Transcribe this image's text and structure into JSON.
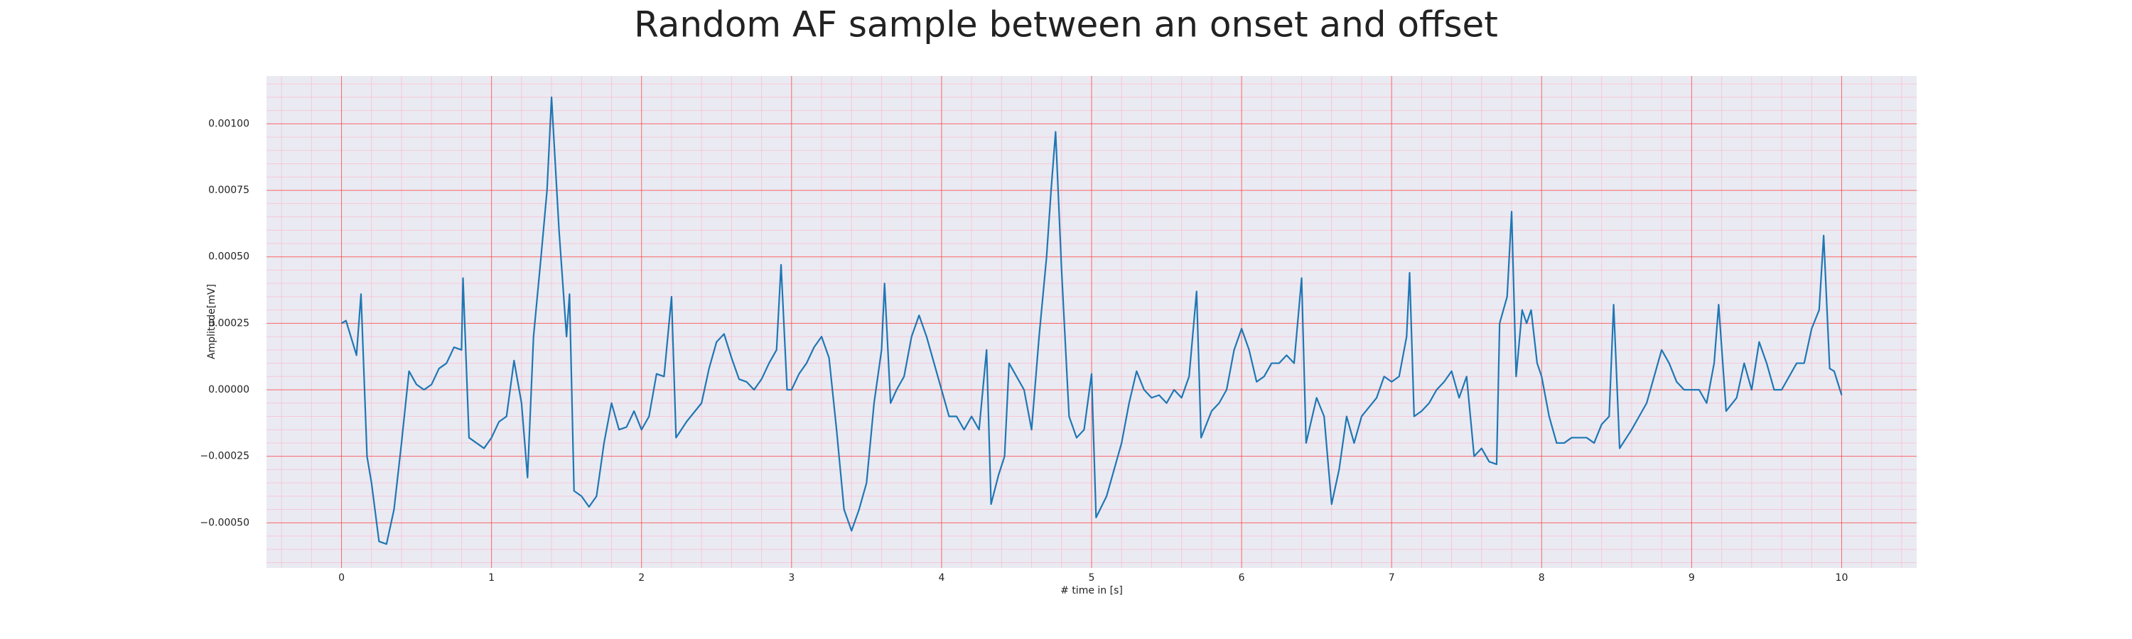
{
  "chart_data": {
    "type": "line",
    "title": "Random AF sample between an onset and offset",
    "xlabel": "# time in [s]",
    "ylabel": "Amplitude[mV]",
    "color": "#1f77b4",
    "grid": true,
    "minor_grid": true,
    "xlim": [
      -0.5,
      10.5
    ],
    "ylim": [
      -0.00067,
      0.00118
    ],
    "xticks": [
      0,
      1,
      2,
      3,
      4,
      5,
      6,
      7,
      8,
      9,
      10
    ],
    "yticks": [
      {
        "value": -0.0005,
        "label": "−0.00050"
      },
      {
        "value": -0.00025,
        "label": "−0.00025"
      },
      {
        "value": 0,
        "label": "0.00000"
      },
      {
        "value": 0.00025,
        "label": "0.00025"
      },
      {
        "value": 0.0005,
        "label": "0.00050"
      },
      {
        "value": 0.00075,
        "label": "0.00075"
      },
      {
        "value": 0.001,
        "label": "0.00100"
      }
    ],
    "x": [
      0,
      0.03,
      0.1,
      0.13,
      0.17,
      0.2,
      0.25,
      0.3,
      0.35,
      0.4,
      0.45,
      0.5,
      0.55,
      0.6,
      0.65,
      0.7,
      0.75,
      0.8,
      0.81,
      0.85,
      0.9,
      0.95,
      1.0,
      1.05,
      1.1,
      1.15,
      1.2,
      1.24,
      1.28,
      1.33,
      1.37,
      1.4,
      1.45,
      1.5,
      1.52,
      1.55,
      1.6,
      1.65,
      1.7,
      1.75,
      1.8,
      1.85,
      1.9,
      1.95,
      2.0,
      2.05,
      2.1,
      2.15,
      2.2,
      2.23,
      2.3,
      2.4,
      2.45,
      2.5,
      2.55,
      2.6,
      2.65,
      2.7,
      2.75,
      2.8,
      2.85,
      2.9,
      2.93,
      2.97,
      3.0,
      3.05,
      3.1,
      3.15,
      3.2,
      3.25,
      3.3,
      3.35,
      3.4,
      3.45,
      3.5,
      3.55,
      3.6,
      3.62,
      3.66,
      3.7,
      3.75,
      3.8,
      3.85,
      3.9,
      3.95,
      4.0,
      4.05,
      4.1,
      4.15,
      4.2,
      4.25,
      4.3,
      4.33,
      4.38,
      4.42,
      4.45,
      4.5,
      4.55,
      4.6,
      4.65,
      4.7,
      4.73,
      4.76,
      4.8,
      4.85,
      4.9,
      4.95,
      5.0,
      5.03,
      5.1,
      5.15,
      5.2,
      5.25,
      5.3,
      5.35,
      5.4,
      5.45,
      5.5,
      5.55,
      5.6,
      5.65,
      5.7,
      5.73,
      5.8,
      5.85,
      5.9,
      5.95,
      6.0,
      6.05,
      6.1,
      6.15,
      6.2,
      6.25,
      6.3,
      6.35,
      6.4,
      6.43,
      6.5,
      6.55,
      6.6,
      6.65,
      6.7,
      6.75,
      6.8,
      6.9,
      6.95,
      7.0,
      7.05,
      7.1,
      7.12,
      7.15,
      7.2,
      7.25,
      7.3,
      7.35,
      7.4,
      7.45,
      7.5,
      7.55,
      7.6,
      7.65,
      7.7,
      7.72,
      7.77,
      7.8,
      7.83,
      7.87,
      7.9,
      7.93,
      7.97,
      8.0,
      8.05,
      8.1,
      8.15,
      8.2,
      8.3,
      8.35,
      8.4,
      8.45,
      8.48,
      8.52,
      8.6,
      8.65,
      8.7,
      8.75,
      8.8,
      8.85,
      8.9,
      8.95,
      9.0,
      9.05,
      9.1,
      9.15,
      9.18,
      9.23,
      9.3,
      9.35,
      9.4,
      9.45,
      9.5,
      9.55,
      9.6,
      9.65,
      9.7,
      9.75,
      9.8,
      9.85,
      9.88,
      9.92,
      9.95,
      10.0
    ],
    "values": [
      0.00025,
      0.00026,
      0.00013,
      0.00036,
      -0.00025,
      -0.00035,
      -0.00057,
      -0.00058,
      -0.00045,
      -0.0002,
      7e-05,
      2e-05,
      0.0,
      2e-05,
      8e-05,
      0.0001,
      0.00016,
      0.00015,
      0.00042,
      -0.00018,
      -0.0002,
      -0.00022,
      -0.00018,
      -0.00012,
      -0.0001,
      0.00011,
      -5e-05,
      -0.00033,
      0.0002,
      0.0005,
      0.00075,
      0.0011,
      0.0006,
      0.0002,
      0.00036,
      -0.00038,
      -0.0004,
      -0.00044,
      -0.0004,
      -0.0002,
      -5e-05,
      -0.00015,
      -0.00014,
      -8e-05,
      -0.00015,
      -0.0001,
      6e-05,
      5e-05,
      0.00035,
      -0.00018,
      -0.00012,
      -5e-05,
      8e-05,
      0.00018,
      0.00021,
      0.00012,
      4e-05,
      3e-05,
      0.0,
      4e-05,
      0.0001,
      0.00015,
      0.00047,
      0.0,
      0.0,
      6e-05,
      0.0001,
      0.00016,
      0.0002,
      0.00012,
      -0.00015,
      -0.00045,
      -0.00053,
      -0.00045,
      -0.00035,
      -5e-05,
      0.00015,
      0.0004,
      -5e-05,
      0.0,
      5e-05,
      0.0002,
      0.00028,
      0.0002,
      0.0001,
      0.0,
      -0.0001,
      -0.0001,
      -0.00015,
      -0.0001,
      -0.00015,
      0.00015,
      -0.00043,
      -0.00032,
      -0.00025,
      0.0001,
      5e-05,
      0.0,
      -0.00015,
      0.0002,
      0.0005,
      0.00075,
      0.00097,
      0.00045,
      -0.0001,
      -0.00018,
      -0.00015,
      6e-05,
      -0.00048,
      -0.0004,
      -0.0003,
      -0.0002,
      -5e-05,
      7e-05,
      0.0,
      -3e-05,
      -2e-05,
      -5e-05,
      0.0,
      -3e-05,
      5e-05,
      0.00037,
      -0.00018,
      -8e-05,
      -5e-05,
      0.0,
      0.00015,
      0.00023,
      0.00015,
      3e-05,
      5e-05,
      0.0001,
      0.0001,
      0.00013,
      0.0001,
      0.00042,
      -0.0002,
      -3e-05,
      -0.0001,
      -0.00043,
      -0.0003,
      -0.0001,
      -0.0002,
      -0.0001,
      -3e-05,
      5e-05,
      3e-05,
      5e-05,
      0.0002,
      0.00044,
      -0.0001,
      -8e-05,
      -5e-05,
      0.0,
      3e-05,
      7e-05,
      -3e-05,
      5e-05,
      -0.00025,
      -0.00022,
      -0.00027,
      -0.00028,
      0.00025,
      0.00035,
      0.00067,
      5e-05,
      0.0003,
      0.00025,
      0.0003,
      0.0001,
      5e-05,
      -0.0001,
      -0.0002,
      -0.0002,
      -0.00018,
      -0.00018,
      -0.0002,
      -0.00013,
      -0.0001,
      0.00032,
      -0.00022,
      -0.00015,
      -0.0001,
      -5e-05,
      5e-05,
      0.00015,
      0.0001,
      3e-05,
      0.0,
      0.0,
      0.0,
      -5e-05,
      0.0001,
      0.00032,
      -8e-05,
      -3e-05,
      0.0001,
      0.0,
      0.00018,
      0.0001,
      0.0,
      0.0,
      5e-05,
      0.0001,
      0.0001,
      0.00023,
      0.0003,
      0.00058,
      8e-05,
      7e-05,
      -2e-05
    ]
  }
}
